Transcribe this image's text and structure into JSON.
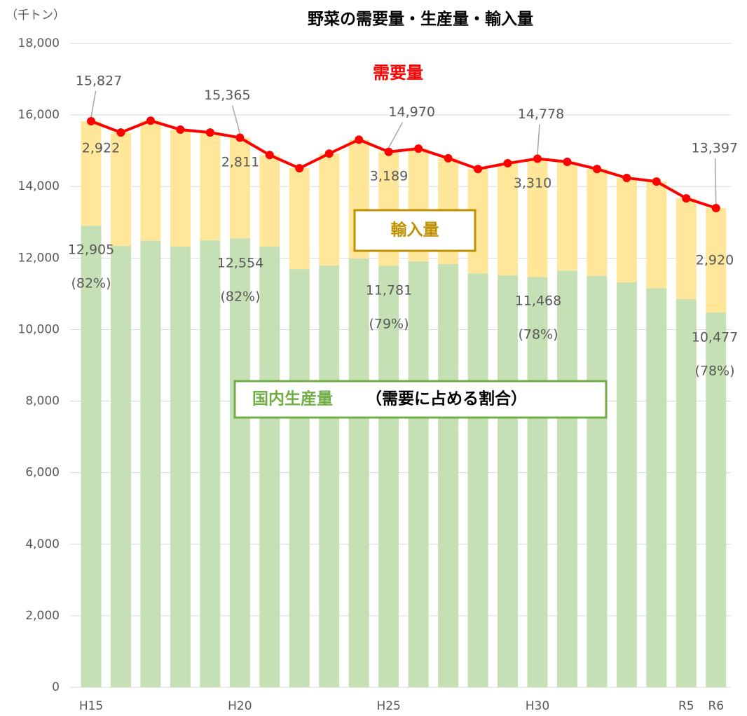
{
  "chart_data": {
    "type": "bar",
    "stacked": true,
    "title": "野菜の需要量・生産量・輸入量",
    "unit_label": "（千トン）",
    "categories": [
      "H15",
      null,
      null,
      null,
      null,
      "H20",
      null,
      null,
      null,
      null,
      "H25",
      null,
      null,
      null,
      null,
      "H30",
      null,
      null,
      null,
      null,
      "R5",
      "R6"
    ],
    "series": [
      {
        "name": "国内生産量",
        "color": "#c5e0b4",
        "values": [
          12905,
          12340,
          12490,
          12320,
          12500,
          12554,
          12320,
          11690,
          11790,
          11990,
          11781,
          11910,
          11830,
          11570,
          11520,
          11468,
          11650,
          11500,
          11320,
          11160,
          10850,
          10477
        ],
        "value_labels": [
          "12,905",
          null,
          null,
          null,
          null,
          "12,554",
          null,
          null,
          null,
          null,
          "11,781",
          null,
          null,
          null,
          null,
          "11,468",
          null,
          null,
          null,
          null,
          null,
          "10,477"
        ],
        "share_labels": [
          "(82%)",
          null,
          null,
          null,
          null,
          "(82%)",
          null,
          null,
          null,
          null,
          "(79%)",
          null,
          null,
          null,
          null,
          "(78%)",
          null,
          null,
          null,
          null,
          null,
          "(78%)"
        ]
      },
      {
        "name": "輸入量",
        "color": "#ffe699",
        "values": [
          2922,
          3170,
          3350,
          3270,
          3010,
          2811,
          2560,
          2820,
          3130,
          3320,
          3189,
          3150,
          2960,
          2920,
          3130,
          3310,
          3040,
          2990,
          2920,
          2980,
          2820,
          2920
        ],
        "value_labels": [
          "2,922",
          null,
          null,
          null,
          null,
          "2,811",
          null,
          null,
          null,
          null,
          "3,189",
          null,
          null,
          null,
          null,
          "3,310",
          null,
          null,
          null,
          null,
          null,
          "2,920"
        ]
      },
      {
        "name": "需要量",
        "type": "line",
        "color": "#ff0000",
        "values": [
          15827,
          15510,
          15840,
          15590,
          15510,
          15365,
          14880,
          14510,
          14920,
          15310,
          14970,
          15060,
          14790,
          14490,
          14650,
          14778,
          14690,
          14490,
          14240,
          14140,
          13670,
          13397
        ],
        "value_labels": [
          "15,827",
          null,
          null,
          null,
          null,
          "15,365",
          null,
          null,
          null,
          null,
          "14,970",
          null,
          null,
          null,
          null,
          "14,778",
          null,
          null,
          null,
          null,
          null,
          "13,397"
        ]
      }
    ],
    "annotations": {
      "demand": "需要量",
      "imports": "輸入量",
      "domestic": "国内生産量",
      "domestic_note": "（需要に占める割合）"
    },
    "ylim": [
      0,
      18000
    ],
    "yticks": [
      0,
      {
        "value": 2000,
        "label": "2,000"
      },
      {
        "value": 4000,
        "label": "4,000"
      },
      {
        "value": 6000,
        "label": "6,000"
      },
      {
        "value": 8000,
        "label": "8,000"
      },
      {
        "value": 10000,
        "label": "10,000"
      },
      {
        "value": 12000,
        "label": "12,000"
      },
      {
        "value": 14000,
        "label": "14,000"
      },
      {
        "value": 16000,
        "label": "16,000"
      },
      {
        "value": 18000,
        "label": "18,000"
      }
    ],
    "grid": true
  }
}
